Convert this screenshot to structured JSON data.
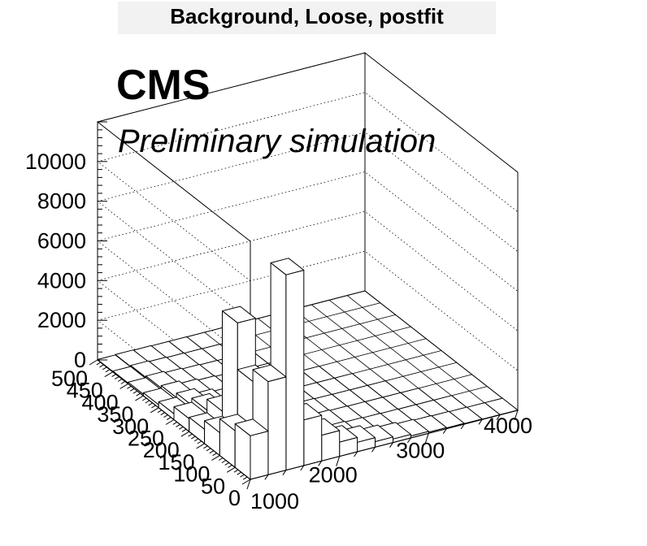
{
  "title": "Background, Loose, postfit",
  "cms_label": "CMS",
  "cms_sublabel": "Preliminary simulation",
  "chart_data": {
    "type": "lego",
    "title": "Background, Loose, postfit",
    "x_axis": {
      "range": [
        1000,
        4000
      ],
      "ticks": [
        "1000",
        "2000",
        "3000",
        "4000"
      ]
    },
    "y_axis": {
      "range": [
        0,
        500
      ],
      "ticks": [
        "0",
        "50",
        "100",
        "150",
        "200",
        "250",
        "300",
        "350",
        "400",
        "450",
        "500"
      ]
    },
    "z_axis": {
      "range": [
        0,
        12000
      ],
      "ticks": [
        "0",
        "2000",
        "4000",
        "6000",
        "8000",
        "10000"
      ]
    },
    "x_bins": [
      1000,
      1200,
      1400,
      1600,
      1800,
      2000,
      2200,
      2400,
      2600,
      2800,
      3000,
      3200,
      3400,
      3600,
      3800,
      4000
    ],
    "y_bins": [
      0,
      50,
      100,
      150,
      200,
      250,
      300,
      350,
      400,
      450,
      500
    ],
    "values": [
      [
        2200,
        4700,
        9850,
        2300,
        1300,
        720,
        480,
        280,
        180,
        100,
        60,
        40,
        25,
        15,
        10
      ],
      [
        1850,
        4100,
        1350,
        580,
        300,
        180,
        100,
        60,
        40,
        25,
        15,
        10,
        5,
        0,
        0
      ],
      [
        1150,
        6450,
        950,
        400,
        210,
        120,
        70,
        40,
        25,
        15,
        10,
        5,
        0,
        0,
        0
      ],
      [
        720,
        1400,
        550,
        250,
        140,
        80,
        45,
        25,
        15,
        10,
        5,
        0,
        0,
        0,
        0
      ],
      [
        650,
        850,
        350,
        170,
        90,
        50,
        30,
        15,
        10,
        5,
        0,
        0,
        0,
        0,
        0
      ],
      [
        300,
        500,
        250,
        120,
        60,
        30,
        20,
        10,
        5,
        0,
        0,
        0,
        0,
        0,
        0
      ],
      [
        150,
        280,
        150,
        80,
        40,
        20,
        10,
        5,
        0,
        0,
        0,
        0,
        0,
        0,
        0
      ],
      [
        80,
        160,
        90,
        50,
        25,
        15,
        5,
        0,
        0,
        0,
        0,
        0,
        0,
        0,
        0
      ],
      [
        40,
        90,
        50,
        25,
        15,
        5,
        0,
        0,
        0,
        0,
        0,
        0,
        0,
        0,
        0
      ],
      [
        20,
        40,
        25,
        10,
        5,
        0,
        0,
        0,
        0,
        0,
        0,
        0,
        0,
        0,
        0
      ]
    ],
    "grid": true
  }
}
